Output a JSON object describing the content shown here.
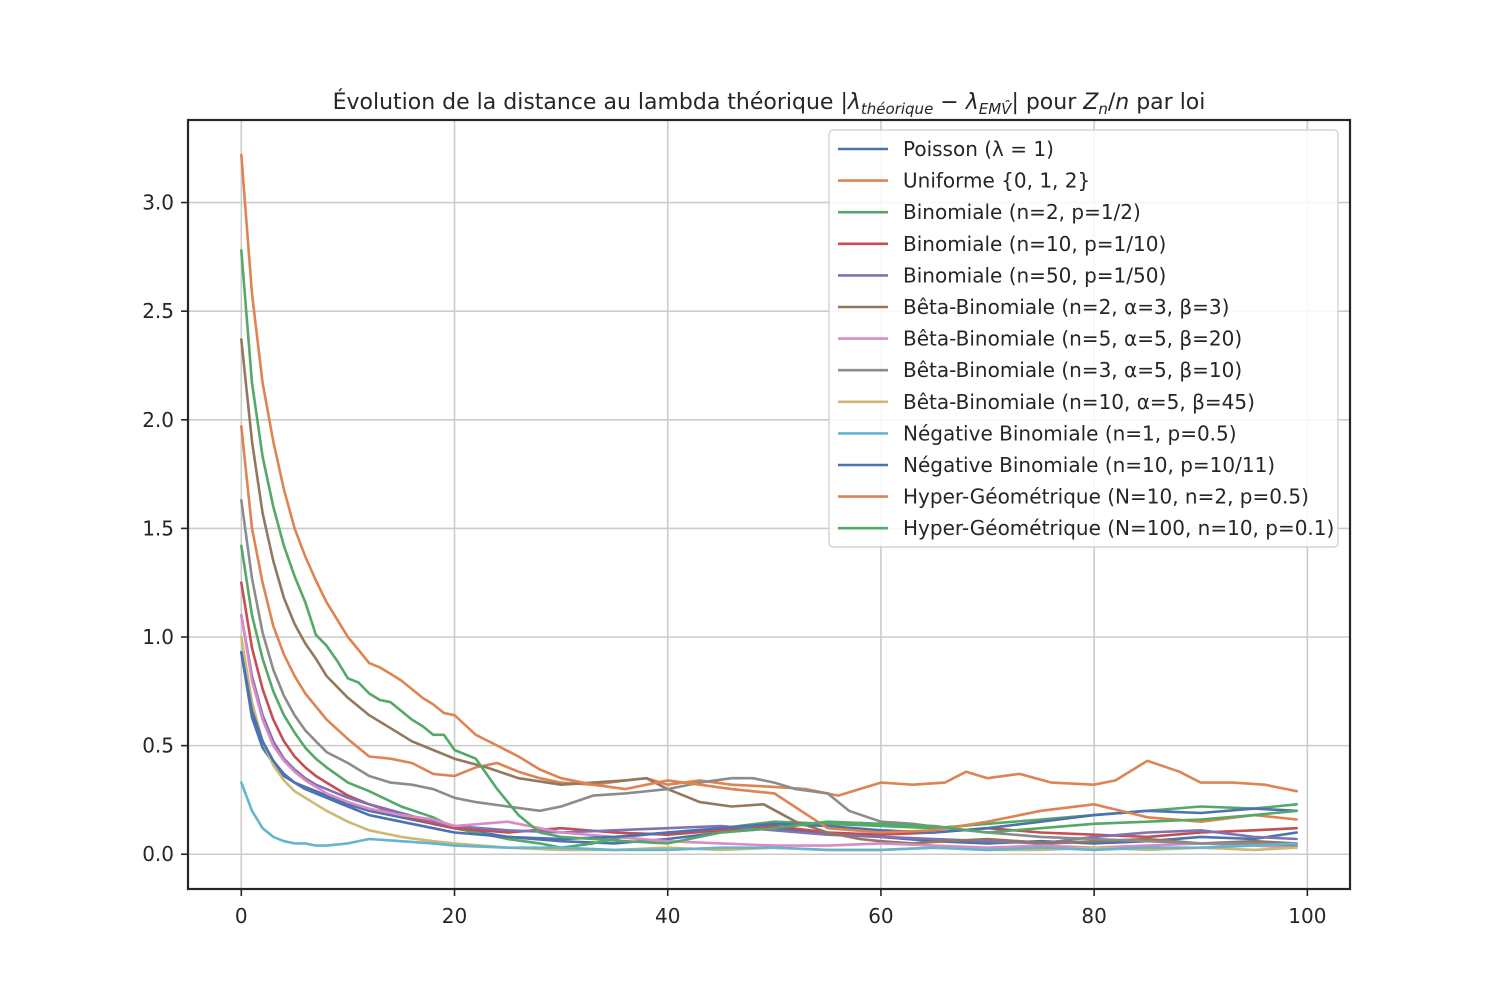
{
  "chart_data": {
    "type": "line",
    "title": {
      "prefix": "Évolution de la distance au lambda théorique |",
      "lam1": "λ",
      "sub1": "théorique",
      "minus": " − ",
      "lam2": "λ",
      "sub2": "EMV̂",
      "mid": "| pour ",
      "z": "Z",
      "zsub": "n",
      "slash": "/",
      "n": "n",
      "suffix": " par loi"
    },
    "xlabel": "",
    "ylabel": "",
    "xlim": [
      -5,
      104
    ],
    "ylim": [
      -0.16,
      3.38
    ],
    "xticks": [
      0,
      20,
      40,
      60,
      80,
      100
    ],
    "yticks": [
      0.0,
      0.5,
      1.0,
      1.5,
      2.0,
      2.5,
      3.0
    ],
    "grid": true,
    "legend": "top-right",
    "colors": {
      "blue": "#4c72b0",
      "orange": "#dd8452",
      "green": "#55a868",
      "red": "#c44e52",
      "purple": "#8172b3",
      "brown": "#937860",
      "pink": "#da8bc3",
      "gray": "#8c8c8c",
      "olive": "#ccb974",
      "cyan": "#64b5cd"
    },
    "series": [
      {
        "name": "Poisson (λ = 1)",
        "color": "#4c72b0",
        "x": [
          0,
          1,
          2,
          3,
          4,
          5,
          6,
          7,
          8,
          10,
          12,
          15,
          18,
          20,
          25,
          30,
          35,
          40,
          45,
          50,
          55,
          60,
          65,
          70,
          75,
          80,
          85,
          90,
          95,
          99
        ],
        "values": [
          0.93,
          0.63,
          0.49,
          0.42,
          0.36,
          0.33,
          0.31,
          0.29,
          0.27,
          0.23,
          0.2,
          0.17,
          0.14,
          0.12,
          0.08,
          0.06,
          0.05,
          0.07,
          0.1,
          0.12,
          0.1,
          0.08,
          0.06,
          0.05,
          0.06,
          0.05,
          0.06,
          0.08,
          0.07,
          0.1
        ]
      },
      {
        "name": "Uniforme {0, 1, 2}",
        "color": "#dd8452",
        "x": [
          0,
          1,
          2,
          3,
          4,
          5,
          6,
          7,
          8,
          10,
          12,
          14,
          16,
          18,
          20,
          22,
          24,
          26,
          28,
          30,
          33,
          36,
          38,
          40,
          43,
          46,
          50,
          53,
          56,
          60,
          63,
          66,
          68,
          70,
          73,
          76,
          80,
          82,
          85,
          88,
          90,
          93,
          96,
          99
        ],
        "values": [
          1.97,
          1.5,
          1.25,
          1.05,
          0.92,
          0.82,
          0.74,
          0.68,
          0.62,
          0.53,
          0.45,
          0.44,
          0.42,
          0.37,
          0.36,
          0.4,
          0.42,
          0.38,
          0.35,
          0.33,
          0.32,
          0.34,
          0.35,
          0.32,
          0.34,
          0.32,
          0.31,
          0.3,
          0.27,
          0.33,
          0.32,
          0.33,
          0.38,
          0.35,
          0.37,
          0.33,
          0.32,
          0.34,
          0.43,
          0.38,
          0.33,
          0.33,
          0.32,
          0.29
        ]
      },
      {
        "name": "Binomiale (n=2, p=1/2)",
        "color": "#55a868",
        "x": [
          0,
          1,
          2,
          3,
          4,
          5,
          6,
          7,
          8,
          10,
          12,
          15,
          18,
          20,
          22,
          25,
          28,
          30,
          33,
          36,
          40,
          45,
          50,
          55,
          60,
          65,
          70,
          75,
          80,
          85,
          90,
          95,
          99
        ],
        "values": [
          1.42,
          1.1,
          0.9,
          0.75,
          0.64,
          0.56,
          0.49,
          0.44,
          0.4,
          0.33,
          0.29,
          0.22,
          0.17,
          0.12,
          0.1,
          0.07,
          0.05,
          0.03,
          0.05,
          0.08,
          0.1,
          0.12,
          0.15,
          0.14,
          0.13,
          0.12,
          0.14,
          0.16,
          0.18,
          0.2,
          0.22,
          0.21,
          0.23
        ]
      },
      {
        "name": "Binomiale (n=10, p=1/10)",
        "color": "#c44e52",
        "x": [
          0,
          1,
          2,
          3,
          4,
          5,
          6,
          7,
          8,
          10,
          12,
          15,
          18,
          20,
          25,
          30,
          35,
          40,
          45,
          50,
          55,
          60,
          65,
          70,
          75,
          80,
          85,
          90,
          95,
          99
        ],
        "values": [
          1.25,
          0.95,
          0.76,
          0.62,
          0.52,
          0.45,
          0.4,
          0.36,
          0.33,
          0.27,
          0.23,
          0.18,
          0.14,
          0.12,
          0.1,
          0.12,
          0.1,
          0.09,
          0.11,
          0.13,
          0.1,
          0.09,
          0.1,
          0.12,
          0.1,
          0.09,
          0.08,
          0.1,
          0.11,
          0.12
        ]
      },
      {
        "name": "Binomiale (n=50, p=1/50)",
        "color": "#8172b3",
        "x": [
          0,
          1,
          2,
          3,
          4,
          5,
          6,
          7,
          8,
          10,
          12,
          15,
          18,
          20,
          25,
          30,
          35,
          40,
          45,
          50,
          55,
          60,
          65,
          70,
          75,
          80,
          85,
          90,
          95,
          99
        ],
        "values": [
          1.1,
          0.82,
          0.64,
          0.52,
          0.44,
          0.39,
          0.35,
          0.32,
          0.3,
          0.26,
          0.23,
          0.19,
          0.15,
          0.13,
          0.11,
          0.1,
          0.11,
          0.12,
          0.13,
          0.11,
          0.09,
          0.08,
          0.07,
          0.06,
          0.05,
          0.08,
          0.1,
          0.11,
          0.08,
          0.07
        ]
      },
      {
        "name": "Bêta-Binomiale (n=2, α=3, β=3)",
        "color": "#937860",
        "x": [
          0,
          1,
          2,
          3,
          4,
          5,
          6,
          7,
          8,
          10,
          12,
          14,
          16,
          18,
          20,
          23,
          26,
          30,
          33,
          36,
          38,
          40,
          43,
          46,
          49,
          52,
          55,
          58,
          60,
          63,
          66,
          70,
          73,
          76,
          80,
          85,
          90,
          95,
          99
        ],
        "values": [
          2.37,
          1.9,
          1.57,
          1.35,
          1.18,
          1.06,
          0.97,
          0.9,
          0.82,
          0.72,
          0.64,
          0.58,
          0.52,
          0.48,
          0.44,
          0.4,
          0.35,
          0.32,
          0.33,
          0.34,
          0.35,
          0.3,
          0.24,
          0.22,
          0.23,
          0.15,
          0.1,
          0.07,
          0.06,
          0.05,
          0.06,
          0.07,
          0.06,
          0.05,
          0.06,
          0.07,
          0.05,
          0.06,
          0.05
        ]
      },
      {
        "name": "Bêta-Binomiale (n=5, α=5, β=20)",
        "color": "#da8bc3",
        "x": [
          0,
          1,
          2,
          3,
          4,
          5,
          6,
          7,
          8,
          10,
          12,
          15,
          18,
          20,
          25,
          30,
          35,
          40,
          45,
          50,
          55,
          60,
          65,
          70,
          75,
          80,
          85,
          90,
          95,
          99
        ],
        "values": [
          1.1,
          0.8,
          0.62,
          0.5,
          0.43,
          0.38,
          0.34,
          0.31,
          0.28,
          0.24,
          0.21,
          0.18,
          0.16,
          0.13,
          0.15,
          0.1,
          0.08,
          0.06,
          0.05,
          0.04,
          0.04,
          0.05,
          0.04,
          0.03,
          0.04,
          0.03,
          0.04,
          0.05,
          0.04,
          0.03
        ]
      },
      {
        "name": "Bêta-Binomiale (n=3, α=5, β=10)",
        "color": "#8c8c8c",
        "x": [
          0,
          1,
          2,
          3,
          4,
          5,
          6,
          7,
          8,
          10,
          12,
          14,
          16,
          18,
          20,
          22,
          25,
          28,
          30,
          33,
          36,
          40,
          43,
          46,
          48,
          50,
          52,
          55,
          57,
          60,
          63,
          66,
          70,
          75,
          80,
          85,
          90,
          95,
          99
        ],
        "values": [
          1.63,
          1.27,
          1.02,
          0.85,
          0.73,
          0.64,
          0.57,
          0.52,
          0.47,
          0.42,
          0.36,
          0.33,
          0.32,
          0.3,
          0.26,
          0.24,
          0.22,
          0.2,
          0.22,
          0.27,
          0.28,
          0.3,
          0.33,
          0.35,
          0.35,
          0.33,
          0.3,
          0.28,
          0.2,
          0.15,
          0.14,
          0.12,
          0.1,
          0.08,
          0.07,
          0.06,
          0.05,
          0.05,
          0.04
        ]
      },
      {
        "name": "Bêta-Binomiale (n=10, α=5, β=45)",
        "color": "#ccb974",
        "x": [
          0,
          1,
          2,
          3,
          4,
          5,
          6,
          7,
          8,
          10,
          12,
          15,
          18,
          20,
          25,
          30,
          35,
          40,
          45,
          50,
          55,
          60,
          65,
          70,
          75,
          80,
          85,
          90,
          95,
          99
        ],
        "values": [
          1.0,
          0.7,
          0.52,
          0.41,
          0.34,
          0.29,
          0.26,
          0.23,
          0.2,
          0.15,
          0.11,
          0.08,
          0.06,
          0.05,
          0.03,
          0.02,
          0.02,
          0.03,
          0.02,
          0.03,
          0.02,
          0.02,
          0.03,
          0.02,
          0.02,
          0.03,
          0.02,
          0.03,
          0.02,
          0.03
        ]
      },
      {
        "name": "Négative Binomiale (n=1, p=0.5)",
        "color": "#64b5cd",
        "x": [
          0,
          1,
          2,
          3,
          4,
          5,
          6,
          7,
          8,
          10,
          12,
          15,
          18,
          20,
          25,
          30,
          35,
          40,
          45,
          50,
          55,
          60,
          65,
          70,
          75,
          80,
          85,
          90,
          95,
          99
        ],
        "values": [
          0.33,
          0.2,
          0.12,
          0.08,
          0.06,
          0.05,
          0.05,
          0.04,
          0.04,
          0.05,
          0.07,
          0.06,
          0.05,
          0.04,
          0.03,
          0.03,
          0.02,
          0.02,
          0.03,
          0.03,
          0.02,
          0.02,
          0.03,
          0.02,
          0.03,
          0.02,
          0.03,
          0.03,
          0.04,
          0.05
        ]
      },
      {
        "name": "Négative Binomiale (n=10, p=10/11)",
        "color": "#4c72b0",
        "x": [
          0,
          1,
          2,
          3,
          4,
          5,
          6,
          7,
          8,
          10,
          12,
          15,
          18,
          20,
          25,
          30,
          35,
          40,
          45,
          50,
          55,
          60,
          65,
          70,
          75,
          80,
          85,
          90,
          95,
          99
        ],
        "values": [
          0.93,
          0.66,
          0.52,
          0.43,
          0.37,
          0.33,
          0.3,
          0.28,
          0.26,
          0.22,
          0.18,
          0.15,
          0.12,
          0.1,
          0.08,
          0.07,
          0.08,
          0.1,
          0.12,
          0.14,
          0.13,
          0.11,
          0.1,
          0.12,
          0.15,
          0.18,
          0.2,
          0.19,
          0.21,
          0.2
        ]
      },
      {
        "name": "Hyper-Géométrique (N=10, n=2, p=0.5)",
        "color": "#dd8452",
        "x": [
          0,
          1,
          2,
          3,
          4,
          5,
          6,
          7,
          8,
          9,
          10,
          11,
          12,
          13,
          14,
          15,
          16,
          17,
          18,
          19,
          20,
          22,
          24,
          26,
          28,
          30,
          33,
          36,
          40,
          43,
          46,
          50,
          55,
          60,
          65,
          70,
          75,
          80,
          85,
          90,
          95,
          99
        ],
        "values": [
          3.22,
          2.58,
          2.17,
          1.9,
          1.68,
          1.5,
          1.37,
          1.26,
          1.16,
          1.08,
          1.0,
          0.94,
          0.88,
          0.86,
          0.83,
          0.8,
          0.76,
          0.72,
          0.69,
          0.65,
          0.64,
          0.55,
          0.5,
          0.45,
          0.39,
          0.35,
          0.32,
          0.3,
          0.34,
          0.32,
          0.3,
          0.28,
          0.12,
          0.1,
          0.11,
          0.15,
          0.2,
          0.23,
          0.17,
          0.15,
          0.18,
          0.16
        ]
      },
      {
        "name": "Hyper-Géométrique (N=100, n=10, p=0.1)",
        "color": "#55a868",
        "x": [
          0,
          1,
          2,
          3,
          4,
          5,
          6,
          7,
          8,
          9,
          10,
          11,
          12,
          13,
          14,
          15,
          16,
          17,
          18,
          19,
          20,
          22,
          24,
          26,
          28,
          30,
          33,
          36,
          40,
          45,
          50,
          55,
          60,
          65,
          70,
          75,
          80,
          85,
          90,
          95,
          99
        ],
        "values": [
          2.78,
          2.17,
          1.83,
          1.6,
          1.42,
          1.28,
          1.16,
          1.01,
          0.96,
          0.89,
          0.81,
          0.79,
          0.74,
          0.71,
          0.7,
          0.66,
          0.62,
          0.59,
          0.55,
          0.55,
          0.48,
          0.44,
          0.3,
          0.18,
          0.1,
          0.08,
          0.07,
          0.06,
          0.05,
          0.1,
          0.12,
          0.15,
          0.14,
          0.13,
          0.1,
          0.12,
          0.14,
          0.15,
          0.16,
          0.18,
          0.2
        ]
      }
    ]
  }
}
